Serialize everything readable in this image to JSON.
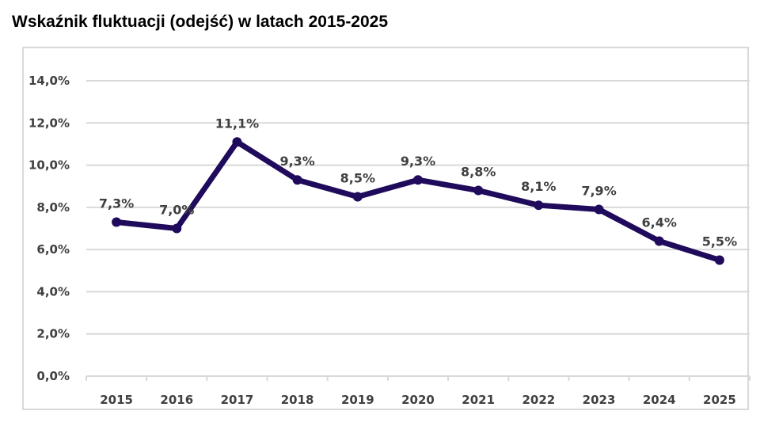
{
  "chart_data": {
    "type": "line",
    "title": "Wskaźnik fluktuacji (odejść) w latach 2015-2025",
    "xlabel": "",
    "ylabel": "",
    "categories": [
      "2015",
      "2016",
      "2017",
      "2018",
      "2019",
      "2020",
      "2021",
      "2022",
      "2023",
      "2024",
      "2025"
    ],
    "series": [
      {
        "name": "Wskaźnik fluktuacji",
        "values": [
          7.3,
          7.0,
          11.1,
          9.3,
          8.5,
          9.3,
          8.8,
          8.1,
          7.9,
          6.4,
          5.5
        ],
        "data_labels": [
          "7,3%",
          "7,0%",
          "11,1%",
          "9,3%",
          "8,5%",
          "9,3%",
          "8,8%",
          "8,1%",
          "7,9%",
          "6,4%",
          "5,5%"
        ],
        "color": "#1f0a5c"
      }
    ],
    "ylim": [
      0,
      14
    ],
    "yticks": [
      0,
      2,
      4,
      6,
      8,
      10,
      12,
      14
    ],
    "ytick_labels": [
      "0,0%",
      "2,0%",
      "4,0%",
      "6,0%",
      "8,0%",
      "10,0%",
      "12,0%",
      "14,0%"
    ],
    "grid": true,
    "legend": "none",
    "colors": {
      "line": "#1f0a5c",
      "grid": "#d9d9d9",
      "text": "#404040",
      "frame": "#d9d9d9"
    }
  }
}
